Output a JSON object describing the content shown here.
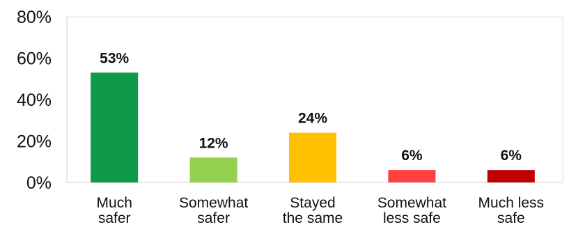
{
  "chart_data": {
    "type": "bar",
    "categories": [
      [
        "Much",
        "safer"
      ],
      [
        "Somewhat",
        "safer"
      ],
      [
        "Stayed",
        "the same"
      ],
      [
        "Somewhat",
        "less safe"
      ],
      [
        "Much less",
        "safe"
      ]
    ],
    "values": [
      53,
      12,
      24,
      6,
      6
    ],
    "data_labels": [
      "53%",
      "12%",
      "24%",
      "6%",
      "6%"
    ],
    "colors": [
      "#0e9a48",
      "#92d050",
      "#ffc000",
      "#ff4040",
      "#c00000"
    ],
    "yticks": [
      "0%",
      "20%",
      "40%",
      "60%",
      "80%"
    ],
    "ylim": [
      0,
      80
    ],
    "title": "",
    "xlabel": "",
    "ylabel": "",
    "grid": false,
    "legend": "none"
  }
}
